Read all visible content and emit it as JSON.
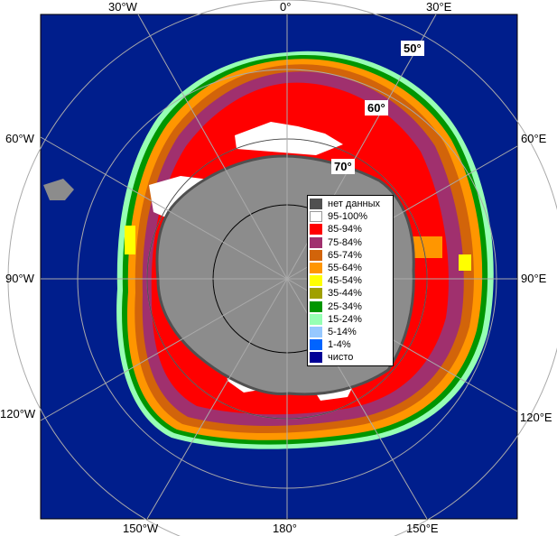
{
  "map": {
    "lon_labels": {
      "w30": "30°W",
      "zero": "0°",
      "e30": "30°E",
      "w60": "60°W",
      "e60": "60°E",
      "w90": "90°W",
      "e90": "90°E",
      "w120": "120°W",
      "e120": "120°E",
      "w150": "150°W",
      "e180": "180°",
      "e150": "150°E"
    },
    "lat_labels": {
      "lat50": "50°",
      "lat60": "60°",
      "lat70": "70°"
    },
    "colors": {
      "ocean": "#001e8c",
      "land": "#8c8c8c",
      "grid": "#aaaaaa"
    }
  },
  "legend": {
    "items": [
      {
        "label": "нет данных",
        "color": "#505050"
      },
      {
        "label": "95-100%",
        "color": "#ffffff"
      },
      {
        "label": "85-94%",
        "color": "#ff0000"
      },
      {
        "label": "75-84%",
        "color": "#a0306e"
      },
      {
        "label": "65-74%",
        "color": "#d2640a"
      },
      {
        "label": "55-64%",
        "color": "#ff9600"
      },
      {
        "label": "45-54%",
        "color": "#ffff00"
      },
      {
        "label": "35-44%",
        "color": "#a0a000"
      },
      {
        "label": "25-34%",
        "color": "#009600"
      },
      {
        "label": "15-24%",
        "color": "#96ffb4"
      },
      {
        "label": "5-14%",
        "color": "#96c8ff"
      },
      {
        "label": "1-4%",
        "color": "#0064ff"
      },
      {
        "label": "чисто",
        "color": "#000096"
      }
    ]
  }
}
